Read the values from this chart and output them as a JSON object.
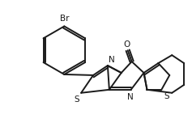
{
  "background_color": "#ffffff",
  "line_color": "#1a1a1a",
  "line_width": 1.4,
  "figsize": [
    2.37,
    1.73
  ],
  "dpi": 100,
  "xlim": [
    0,
    237
  ],
  "ylim": [
    0,
    173
  ]
}
